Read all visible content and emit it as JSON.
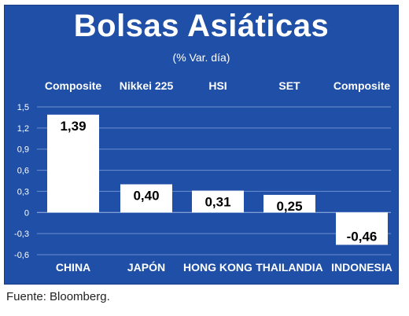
{
  "header": {
    "title": "Bolsas Asiáticas",
    "subtitle": "(% Var. día)"
  },
  "footer": {
    "source": "Fuente: Bloomberg."
  },
  "colors": {
    "background": "#1f4fa6",
    "bar": "#ffffff",
    "gridline": "#6f8fd0",
    "text": "#ffffff"
  },
  "chart_data": {
    "type": "bar",
    "title": "Bolsas Asiáticas",
    "subtitle": "(% Var. día)",
    "categories": [
      "CHINA",
      "JAPÓN",
      "HONG KONG",
      "THAILANDIA",
      "INDONESIA"
    ],
    "index_names": [
      "Composite",
      "Nikkei 225",
      "HSI",
      "SET",
      "Composite"
    ],
    "values": [
      1.39,
      0.4,
      0.31,
      0.25,
      -0.46
    ],
    "value_labels": [
      "1,39",
      "0,40",
      "0,31",
      "0,25",
      "-0,46"
    ],
    "ylim": [
      -0.6,
      1.5
    ],
    "yticks": [
      1.5,
      1.2,
      0.9,
      0.6,
      0.3,
      0,
      -0.3,
      -0.6
    ],
    "ytick_labels": [
      "1,5",
      "1,2",
      "0,9",
      "0,6",
      "0,3",
      "0",
      "-0,3",
      "-0,6"
    ],
    "grid": true,
    "xlabel": "",
    "ylabel": ""
  }
}
